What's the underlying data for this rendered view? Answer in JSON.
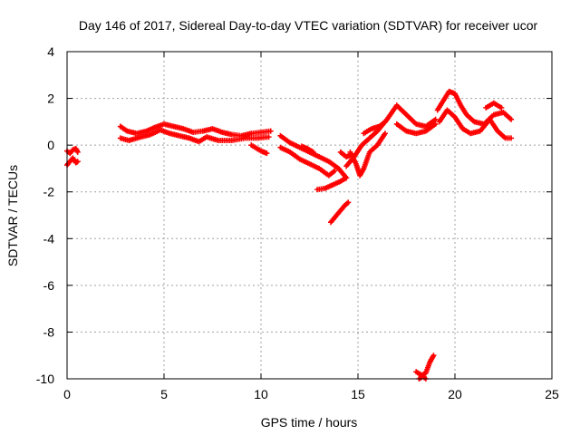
{
  "chart_data": {
    "type": "scatter",
    "title": "Day 146 of 2017, Sidereal Day-to-day VTEC variation (SDTVAR) for receiver ucor",
    "xlabel": "GPS time / hours",
    "ylabel": "SDTVAR / TECUs",
    "xlim": [
      0,
      25
    ],
    "ylim": [
      -10,
      4
    ],
    "xticks": [
      0,
      5,
      10,
      15,
      20,
      25
    ],
    "yticks": [
      -10,
      -8,
      -6,
      -4,
      -2,
      0,
      2,
      4
    ],
    "xtick_labels": [
      "0",
      "5",
      "10",
      "15",
      "20",
      "25"
    ],
    "ytick_labels": [
      "-10",
      "-8",
      "-6",
      "-4",
      "-2",
      "0",
      "2",
      "4"
    ],
    "grid": true,
    "marker": "+",
    "series": [
      {
        "name": "SDTVAR",
        "color": "#ff0000",
        "segments": [
          [
            [
              0.0,
              -0.85
            ],
            [
              0.15,
              -0.7
            ],
            [
              0.3,
              -0.55
            ],
            [
              0.45,
              -0.75
            ],
            [
              0.55,
              -0.7
            ]
          ],
          [
            [
              0.0,
              -0.25
            ],
            [
              0.15,
              -0.35
            ],
            [
              0.3,
              -0.2
            ],
            [
              0.45,
              -0.15
            ],
            [
              0.55,
              -0.3
            ]
          ],
          [
            [
              2.75,
              0.8
            ],
            [
              3.1,
              0.6
            ],
            [
              3.6,
              0.5
            ],
            [
              4.1,
              0.6
            ],
            [
              4.5,
              0.75
            ],
            [
              5.0,
              0.9
            ],
            [
              5.5,
              0.8
            ],
            [
              6.0,
              0.7
            ],
            [
              6.5,
              0.55
            ],
            [
              7.0,
              0.6
            ],
            [
              7.5,
              0.7
            ],
            [
              8.0,
              0.55
            ],
            [
              8.5,
              0.45
            ],
            [
              9.0,
              0.4
            ],
            [
              9.5,
              0.5
            ],
            [
              10.0,
              0.55
            ],
            [
              10.5,
              0.6
            ]
          ],
          [
            [
              2.75,
              0.3
            ],
            [
              3.2,
              0.2
            ],
            [
              3.8,
              0.35
            ],
            [
              4.3,
              0.45
            ],
            [
              4.8,
              0.65
            ],
            [
              5.3,
              0.5
            ],
            [
              5.8,
              0.4
            ],
            [
              6.3,
              0.3
            ],
            [
              6.8,
              0.15
            ],
            [
              7.2,
              0.35
            ],
            [
              7.8,
              0.2
            ],
            [
              8.5,
              0.2
            ],
            [
              9.2,
              0.3
            ],
            [
              9.8,
              0.3
            ],
            [
              10.4,
              0.35
            ]
          ],
          [
            [
              9.5,
              0.0
            ],
            [
              10.0,
              -0.25
            ],
            [
              10.3,
              -0.35
            ]
          ],
          [
            [
              11.0,
              0.4
            ],
            [
              11.5,
              0.1
            ],
            [
              12.0,
              -0.1
            ],
            [
              12.5,
              -0.3
            ],
            [
              13.0,
              -0.5
            ],
            [
              13.5,
              -0.7
            ],
            [
              14.0,
              -1.0
            ],
            [
              14.4,
              -1.4
            ]
          ],
          [
            [
              11.0,
              -0.1
            ],
            [
              11.5,
              -0.3
            ],
            [
              12.0,
              -0.6
            ],
            [
              12.5,
              -0.8
            ],
            [
              13.0,
              -1.0
            ],
            [
              13.5,
              -1.3
            ],
            [
              13.8,
              -1.1
            ]
          ],
          [
            [
              12.1,
              -0.05
            ],
            [
              12.4,
              -0.15
            ],
            [
              12.7,
              -0.3
            ]
          ],
          [
            [
              12.9,
              -1.9
            ],
            [
              13.3,
              -1.85
            ],
            [
              13.7,
              -1.7
            ],
            [
              14.1,
              -1.55
            ],
            [
              14.4,
              -1.4
            ]
          ],
          [
            [
              13.6,
              -3.3
            ],
            [
              13.9,
              -3.0
            ],
            [
              14.1,
              -2.8
            ],
            [
              14.3,
              -2.6
            ],
            [
              14.5,
              -2.45
            ]
          ],
          [
            [
              14.4,
              -0.9
            ],
            [
              14.8,
              -0.5
            ],
            [
              15.2,
              0.0
            ],
            [
              15.6,
              0.3
            ],
            [
              16.0,
              0.6
            ],
            [
              16.5,
              1.1
            ],
            [
              17.0,
              1.7
            ],
            [
              17.5,
              1.3
            ],
            [
              18.0,
              0.9
            ],
            [
              18.5,
              0.8
            ],
            [
              19.0,
              1.1
            ]
          ],
          [
            [
              14.6,
              -0.3
            ],
            [
              14.9,
              -0.8
            ],
            [
              15.1,
              -1.3
            ],
            [
              15.3,
              -1.0
            ],
            [
              15.6,
              -0.3
            ],
            [
              16.0,
              0.0
            ],
            [
              16.4,
              0.5
            ]
          ],
          [
            [
              15.3,
              0.5
            ],
            [
              15.7,
              0.7
            ],
            [
              16.1,
              0.8
            ],
            [
              16.4,
              1.0
            ]
          ],
          [
            [
              14.1,
              -0.3
            ],
            [
              14.4,
              -0.5
            ],
            [
              14.7,
              -0.4
            ]
          ],
          [
            [
              17.0,
              0.9
            ],
            [
              17.5,
              0.6
            ],
            [
              18.0,
              0.5
            ],
            [
              18.5,
              0.6
            ],
            [
              19.0,
              0.9
            ]
          ],
          [
            [
              19.1,
              1.5
            ],
            [
              19.4,
              1.9
            ],
            [
              19.7,
              2.3
            ],
            [
              20.0,
              2.2
            ],
            [
              20.3,
              1.7
            ],
            [
              20.6,
              1.3
            ],
            [
              21.0,
              1.0
            ],
            [
              21.5,
              0.9
            ],
            [
              22.0,
              1.3
            ],
            [
              22.5,
              1.4
            ],
            [
              22.9,
              1.1
            ]
          ],
          [
            [
              19.2,
              1.0
            ],
            [
              19.6,
              1.5
            ],
            [
              20.0,
              1.2
            ],
            [
              20.4,
              0.7
            ],
            [
              20.8,
              0.5
            ],
            [
              21.3,
              0.6
            ],
            [
              21.8,
              1.1
            ],
            [
              22.2,
              0.6
            ],
            [
              22.6,
              0.3
            ],
            [
              22.9,
              0.3
            ]
          ],
          [
            [
              21.6,
              1.6
            ],
            [
              22.0,
              1.8
            ],
            [
              22.4,
              1.6
            ]
          ],
          [
            [
              18.0,
              -9.7
            ],
            [
              18.3,
              -9.85
            ],
            [
              18.5,
              -9.75
            ],
            [
              18.7,
              -9.3
            ],
            [
              18.9,
              -9.0
            ]
          ],
          [
            [
              18.15,
              -10.0
            ],
            [
              18.35,
              -9.9
            ],
            [
              18.5,
              -10.0
            ]
          ]
        ]
      }
    ]
  }
}
